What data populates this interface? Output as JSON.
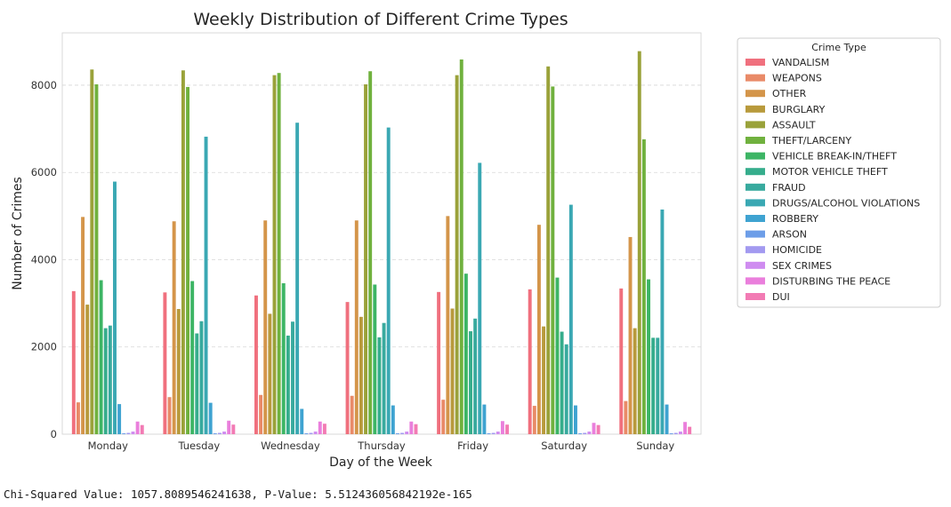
{
  "chart_data": {
    "type": "bar",
    "title": "Weekly Distribution of Different Crime Types",
    "xlabel": "Day of the Week",
    "ylabel": "Number of Crimes",
    "ylim": [
      0,
      9200
    ],
    "yticks": [
      0,
      2000,
      4000,
      6000,
      8000
    ],
    "grid": "horizontal dashed",
    "legend_title": "Crime Type",
    "legend_position": "outside-right",
    "categories": [
      "Monday",
      "Tuesday",
      "Wednesday",
      "Thursday",
      "Friday",
      "Saturday",
      "Sunday"
    ],
    "series": [
      {
        "name": "VANDALISM",
        "color": "#f0707e",
        "values": [
          3280,
          3250,
          3180,
          3030,
          3260,
          3320,
          3340
        ]
      },
      {
        "name": "WEAPONS",
        "color": "#e98a68",
        "values": [
          730,
          850,
          900,
          880,
          790,
          650,
          760
        ]
      },
      {
        "name": "OTHER",
        "color": "#d4954a",
        "values": [
          4980,
          4880,
          4900,
          4900,
          5000,
          4800,
          4520
        ]
      },
      {
        "name": "BURGLARY",
        "color": "#b89a3c",
        "values": [
          2970,
          2870,
          2760,
          2690,
          2880,
          2470,
          2430
        ]
      },
      {
        "name": "ASSAULT",
        "color": "#9aa23a",
        "values": [
          8360,
          8340,
          8230,
          8020,
          8230,
          8430,
          8780
        ]
      },
      {
        "name": "THEFT/LARCENY",
        "color": "#70b13e",
        "values": [
          8020,
          7960,
          8280,
          8320,
          8590,
          7970,
          6760
        ]
      },
      {
        "name": "VEHICLE BREAK-IN/THEFT",
        "color": "#3db565",
        "values": [
          3530,
          3510,
          3460,
          3430,
          3680,
          3590,
          3550
        ]
      },
      {
        "name": "MOTOR VEHICLE THEFT",
        "color": "#36ad8c",
        "values": [
          2430,
          2310,
          2260,
          2220,
          2360,
          2350,
          2210
        ]
      },
      {
        "name": "FRAUD",
        "color": "#38aa9e",
        "values": [
          2490,
          2590,
          2580,
          2550,
          2650,
          2060,
          2210
        ]
      },
      {
        "name": "DRUGS/ALCOHOL VIOLATIONS",
        "color": "#3aa8b3",
        "values": [
          5790,
          6820,
          7140,
          7030,
          6220,
          5260,
          5150
        ]
      },
      {
        "name": "ROBBERY",
        "color": "#3fa3d1",
        "values": [
          690,
          720,
          580,
          660,
          680,
          660,
          680
        ]
      },
      {
        "name": "ARSON",
        "color": "#6d9ee8",
        "values": [
          20,
          20,
          20,
          20,
          20,
          20,
          20
        ]
      },
      {
        "name": "HOMICIDE",
        "color": "#a39af0",
        "values": [
          30,
          30,
          30,
          30,
          30,
          30,
          30
        ]
      },
      {
        "name": "SEX CRIMES",
        "color": "#cf8cf0",
        "values": [
          60,
          60,
          60,
          60,
          60,
          60,
          60
        ]
      },
      {
        "name": "DISTURBING THE PEACE",
        "color": "#ea7fdc",
        "values": [
          290,
          310,
          290,
          290,
          300,
          260,
          280
        ]
      },
      {
        "name": "DUI",
        "color": "#f27bb4",
        "values": [
          210,
          220,
          240,
          230,
          220,
          210,
          170
        ]
      }
    ]
  },
  "stats_output": "Chi-Squared Value: 1057.8089546241638, P-Value: 5.512436056842192e-165"
}
